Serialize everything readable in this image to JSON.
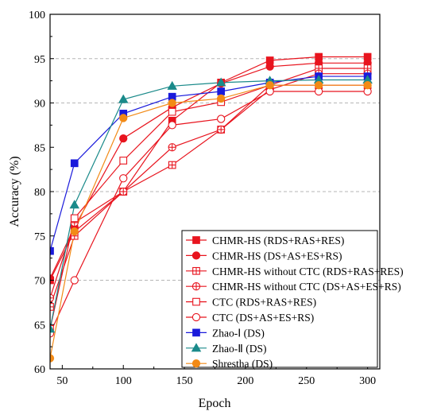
{
  "chart_data": {
    "type": "line",
    "xlabel": "Epoch",
    "ylabel": "Accuracy (%)",
    "xlim": [
      40,
      310
    ],
    "ylim": [
      60,
      100
    ],
    "xticks": [
      50,
      100,
      150,
      200,
      250,
      300
    ],
    "yticks": [
      60,
      65,
      70,
      75,
      80,
      85,
      90,
      95,
      100
    ],
    "grid": "horizontal dashed at 70, 80, 90, 95",
    "legend_position": "bottom-right",
    "series": [
      {
        "name": "CHMR-HS (RDS+RAS+RES)",
        "color": "#e8141e",
        "marker": "square-filled",
        "x": [
          40,
          60,
          100,
          140,
          180,
          220,
          260,
          300
        ],
        "y": [
          70.0,
          75.5,
          80.0,
          88.0,
          92.3,
          94.8,
          95.2,
          95.2
        ]
      },
      {
        "name": "CHMR-HS (DS+AS+ES+RS)",
        "color": "#e8141e",
        "marker": "circle-filled",
        "x": [
          40,
          60,
          100,
          140,
          180,
          220,
          260,
          300
        ],
        "y": [
          70.2,
          76.0,
          86.0,
          89.5,
          92.2,
          94.1,
          94.5,
          94.5
        ]
      },
      {
        "name": "CHMR-HS without CTC (RDS+RAS+RES)",
        "color": "#e8141e",
        "marker": "square-cross",
        "x": [
          40,
          60,
          100,
          140,
          180,
          220,
          260,
          300
        ],
        "y": [
          67.0,
          75.0,
          80.0,
          83.0,
          87.0,
          92.0,
          93.9,
          93.9
        ]
      },
      {
        "name": "CHMR-HS without CTC (DS+AS+ES+RS)",
        "color": "#e8141e",
        "marker": "circle-cross",
        "x": [
          40,
          60,
          100,
          140,
          180,
          220,
          260,
          300
        ],
        "y": [
          68.0,
          76.5,
          80.0,
          85.0,
          87.0,
          91.5,
          93.3,
          93.3
        ]
      },
      {
        "name": "CTC (RDS+RAS+RES)",
        "color": "#e8141e",
        "marker": "square-open",
        "x": [
          40,
          60,
          100,
          140,
          180,
          220,
          260,
          300
        ],
        "y": [
          64.5,
          77.0,
          83.5,
          89.0,
          90.1,
          92.0,
          92.0,
          92.0
        ]
      },
      {
        "name": "CTC (DS+AS+ES+RS)",
        "color": "#e8141e",
        "marker": "circle-open",
        "x": [
          40,
          60,
          100,
          140,
          180,
          220,
          260,
          300
        ],
        "y": [
          64.0,
          70.0,
          81.5,
          87.5,
          88.2,
          91.3,
          91.3,
          91.3
        ]
      },
      {
        "name": "Zhao-Ⅰ (DS)",
        "color": "#1a1adb",
        "marker": "square-filled",
        "x": [
          40,
          60,
          100,
          140,
          180,
          220,
          260,
          300
        ],
        "y": [
          73.3,
          83.2,
          88.8,
          90.7,
          91.3,
          92.3,
          93.0,
          93.0
        ]
      },
      {
        "name": "Zhao-Ⅱ (DS)",
        "color": "#1a8a8a",
        "marker": "triangle-filled",
        "x": [
          40,
          60,
          100,
          140,
          180,
          220,
          260,
          300
        ],
        "y": [
          64.5,
          78.5,
          90.4,
          91.9,
          92.3,
          92.5,
          92.6,
          92.6
        ]
      },
      {
        "name": "Shrestha (DS)",
        "color": "#f28a16",
        "marker": "circle-filled",
        "x": [
          40,
          60,
          100,
          140,
          180,
          220,
          260,
          300
        ],
        "y": [
          61.2,
          75.5,
          88.3,
          90.0,
          90.5,
          92.0,
          92.0,
          92.0
        ]
      }
    ]
  }
}
